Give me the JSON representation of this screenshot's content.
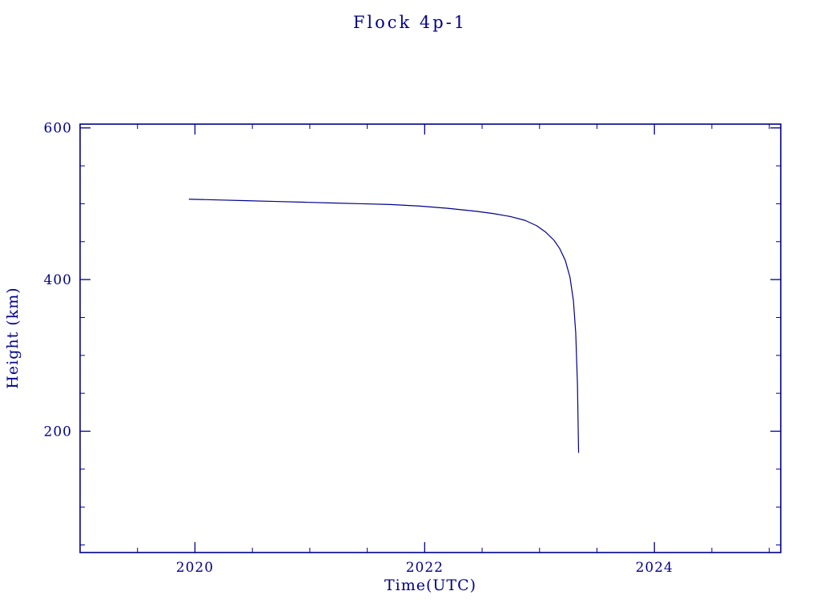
{
  "chart_data": {
    "type": "line",
    "title": "Flock 4p-1",
    "xlabel": "Time(UTC)",
    "ylabel": "Height (km)",
    "xlim": [
      2019.0,
      2025.1
    ],
    "ylim": [
      40,
      605
    ],
    "x_ticks": [
      2020,
      2022,
      2024
    ],
    "y_ticks": [
      200,
      400,
      600
    ],
    "x_minor_step": 0.5,
    "y_minor_step": 50,
    "axis_color": "#00008B",
    "line_color": "#00008B",
    "background": "#FFFFFF",
    "legend": "none",
    "grid": "off",
    "series": [
      {
        "name": "Flock 4p-1 height",
        "x": [
          2019.95,
          2020.2,
          2020.45,
          2020.7,
          2020.95,
          2021.2,
          2021.45,
          2021.7,
          2021.95,
          2022.2,
          2022.45,
          2022.6,
          2022.75,
          2022.875,
          2022.975,
          2023.05,
          2023.125,
          2023.175,
          2023.225,
          2023.265,
          2023.295,
          2023.315,
          2023.33,
          2023.34
        ],
        "y": [
          506,
          505,
          504,
          503,
          502,
          501,
          500,
          499,
          497,
          494,
          490,
          487,
          483,
          478,
          471,
          463,
          452,
          441,
          425,
          403,
          372,
          330,
          262,
          172
        ]
      }
    ]
  },
  "layout_note": "Orbital height decay plot"
}
